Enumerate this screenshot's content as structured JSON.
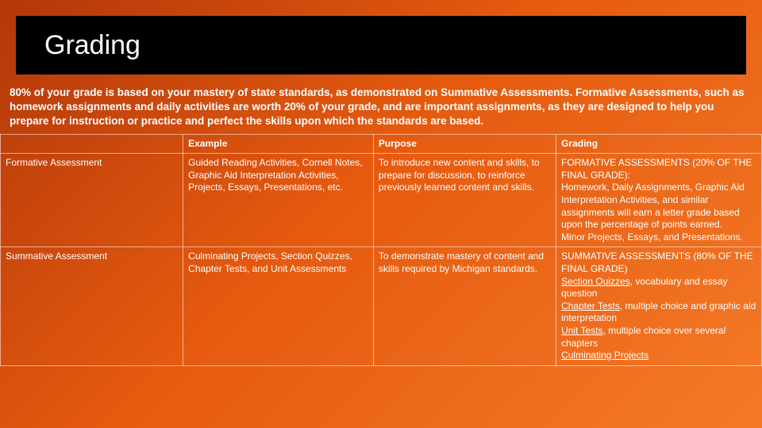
{
  "background": {
    "gradient_start": "#b2370a",
    "gradient_mid": "#e55a0f",
    "gradient_end": "#f47a28"
  },
  "header": {
    "title": "Grading",
    "bar_color": "#000000",
    "accent_fill": "#e8690b",
    "accent_border": "#2e1a0a",
    "title_fontsize": 34,
    "title_color": "#ffffff"
  },
  "intro": {
    "text": "80% of your grade is based on your mastery of state standards, as demonstrated on Summative Assessments.  Formative Assessments, such as homework assignments and daily activities are worth 20% of your grade, and are important assignments, as they are designed to help you prepare for instruction or practice and perfect the skills upon which the standards are based.",
    "fontsize": 13.5,
    "font_weight": 700,
    "color": "#ffffff"
  },
  "table": {
    "border_color": "rgba(255,255,255,0.55)",
    "fontsize": 12,
    "text_color": "#ffffff",
    "column_widths_pct": [
      24,
      25,
      24,
      27
    ],
    "columns": [
      "",
      "Example",
      "Purpose",
      "Grading"
    ],
    "rows": [
      {
        "label": "Formative Assessment",
        "example": "Guided Reading Activities, Cornell Notes, Graphic Aid Interpretation Activities, Projects, Essays, Presentations, etc.",
        "purpose": "To introduce new content and skills, to prepare for discussion, to reinforce previously learned content and skills.",
        "grading": "FORMATIVE ASSESSMENTS (20% OF THE FINAL GRADE):\nHomework, Daily Assignments, Graphic Aid Interpretation Activities, and similar assignments will earn a letter grade based upon the percentage of points earned.\nMinor Projects, Essays, and Presentations."
      },
      {
        "label": "Summative Assessment",
        "example": "Culminating Projects, Section Quizzes, Chapter Tests, and Unit Assessments",
        "purpose": "To demonstrate mastery of content and skills required by Michigan standards.",
        "grading": "SUMMATIVE ASSESSMENTS (80% OF THE FINAL GRADE)\nSection Quizzes, vocabulary and essay question\nChapter Tests, multiple choice and graphic aid interpretation\nUnit Tests, multiple choice over several chapters\nCulminating Projects"
      }
    ],
    "grading_underline_terms": {
      "0": [],
      "1": [
        "Section Quizzes",
        "Chapter Tests",
        "Unit Tests",
        "Culminating Projects"
      ]
    }
  }
}
